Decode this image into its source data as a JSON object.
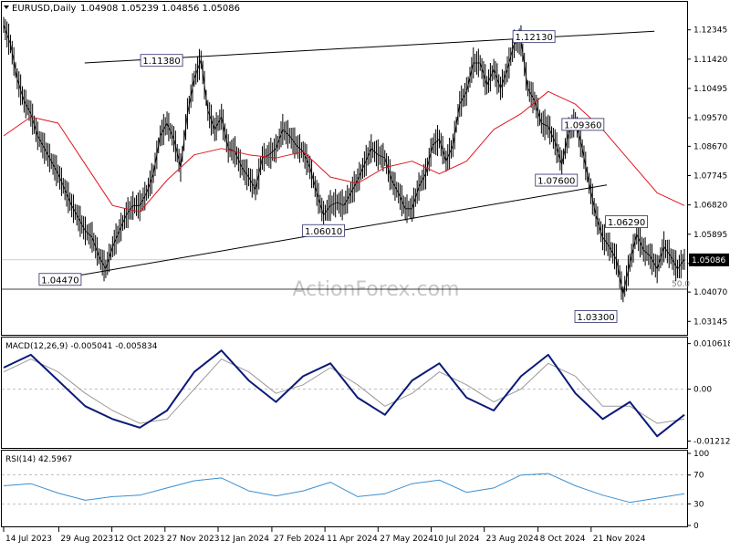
{
  "header": {
    "symbol": "EURUSD,Daily",
    "ohlc": "1.04908 1.05239 1.04856 1.05086"
  },
  "watermark": "ActionForex.com",
  "colors": {
    "price": "#000000",
    "sma": "#e0141e",
    "macd": "#0a1a78",
    "signal": "#9a9a9a",
    "rsi": "#3a8fd0",
    "grid": "#9a9a9a",
    "current_box": "#000000"
  },
  "chart_data": [
    {
      "type": "line",
      "panel": "price",
      "ylim": [
        1.0275,
        1.132
      ],
      "yticks": [
        {
          "value": 1.12345,
          "label": "1.12345"
        },
        {
          "value": 1.1142,
          "label": "1.11420"
        },
        {
          "value": 1.10495,
          "label": "1.10495"
        },
        {
          "value": 1.0957,
          "label": "1.09570"
        },
        {
          "value": 1.0867,
          "label": "1.08670"
        },
        {
          "value": 1.07745,
          "label": "1.07745"
        },
        {
          "value": 1.0682,
          "label": "1.06820"
        },
        {
          "value": 1.05895,
          "label": "1.05895"
        },
        {
          "value": 1.0497,
          "label": "1.04970"
        },
        {
          "value": 1.0407,
          "label": "1.04070"
        },
        {
          "value": 1.03145,
          "label": "1.03145"
        }
      ],
      "xlim": [
        0,
        100
      ],
      "xticks": [
        {
          "x": 0,
          "label": "14 Jul 2023"
        },
        {
          "x": 8.1,
          "label": "29 Aug 2023"
        },
        {
          "x": 15.9,
          "label": "12 Oct 2023"
        },
        {
          "x": 23.7,
          "label": "27 Nov 2023"
        },
        {
          "x": 31.5,
          "label": "12 Jan 2024"
        },
        {
          "x": 39.4,
          "label": "27 Feb 2024"
        },
        {
          "x": 47.2,
          "label": "11 Apr 2024"
        },
        {
          "x": 55.0,
          "label": "27 May 2024"
        },
        {
          "x": 62.8,
          "label": "10 Jul 2024"
        },
        {
          "x": 70.6,
          "label": "23 Aug 2024"
        },
        {
          "x": 78.5,
          "label": "8 Oct 2024"
        },
        {
          "x": 86.3,
          "label": "21 Nov 2024"
        }
      ],
      "current_price": {
        "value": 1.05086,
        "label": "1.05086"
      },
      "level_line": {
        "value": 1.0416,
        "label": "50.0"
      },
      "series": [
        {
          "name": "price",
          "x": [
            0,
            1,
            2,
            3,
            4,
            5,
            6,
            7,
            8,
            9,
            10,
            11,
            12,
            13,
            14,
            15,
            16,
            17,
            18,
            19,
            20,
            21,
            22,
            23,
            24,
            25,
            26,
            27,
            28,
            29,
            30,
            31,
            32,
            33,
            34,
            35,
            36,
            37,
            38,
            39,
            40,
            41,
            42,
            43,
            44,
            45,
            46,
            47,
            48,
            49,
            50,
            51,
            52,
            53,
            54,
            55,
            56,
            57,
            58,
            59,
            60,
            61,
            62,
            63,
            64,
            65,
            66,
            67,
            68,
            69,
            70,
            71,
            72,
            73,
            74,
            75,
            76,
            77,
            78,
            79,
            80,
            81,
            82,
            83,
            84,
            85,
            86,
            87,
            88,
            89,
            90,
            91,
            92,
            93,
            94,
            95,
            96,
            97,
            98,
            99,
            100
          ],
          "y": [
            1.125,
            1.119,
            1.108,
            1.101,
            1.097,
            1.09,
            1.086,
            1.082,
            1.078,
            1.073,
            1.068,
            1.064,
            1.06,
            1.058,
            1.052,
            1.048,
            1.055,
            1.06,
            1.065,
            1.068,
            1.068,
            1.072,
            1.078,
            1.09,
            1.094,
            1.089,
            1.08,
            1.097,
            1.108,
            1.114,
            1.098,
            1.092,
            1.096,
            1.086,
            1.085,
            1.08,
            1.077,
            1.073,
            1.083,
            1.084,
            1.086,
            1.092,
            1.09,
            1.087,
            1.085,
            1.08,
            1.072,
            1.065,
            1.068,
            1.069,
            1.068,
            1.072,
            1.076,
            1.081,
            1.086,
            1.084,
            1.083,
            1.076,
            1.072,
            1.067,
            1.067,
            1.074,
            1.078,
            1.087,
            1.089,
            1.082,
            1.087,
            1.1,
            1.104,
            1.113,
            1.113,
            1.106,
            1.111,
            1.105,
            1.111,
            1.119,
            1.12,
            1.105,
            1.101,
            1.094,
            1.093,
            1.088,
            1.081,
            1.091,
            1.095,
            1.086,
            1.075,
            1.065,
            1.058,
            1.055,
            1.051,
            1.04,
            1.05,
            1.059,
            1.054,
            1.052,
            1.048,
            1.055,
            1.052,
            1.048,
            1.051
          ]
        },
        {
          "name": "sma",
          "x": [
            0,
            4,
            8,
            12,
            16,
            20,
            24,
            28,
            32,
            36,
            40,
            44,
            48,
            52,
            56,
            60,
            64,
            68,
            72,
            76,
            80,
            84,
            88,
            92,
            96,
            100
          ],
          "y": [
            1.09,
            1.096,
            1.094,
            1.081,
            1.068,
            1.066,
            1.076,
            1.084,
            1.086,
            1.084,
            1.083,
            1.085,
            1.077,
            1.075,
            1.08,
            1.082,
            1.078,
            1.082,
            1.092,
            1.097,
            1.104,
            1.1,
            1.092,
            1.082,
            1.072,
            1.068
          ]
        }
      ],
      "trendlines": [
        {
          "x": [
            9.5,
            88.6
          ],
          "y": [
            1.0454,
            1.0745
          ]
        },
        {
          "x": [
            11.9,
            95.6
          ],
          "y": [
            1.113,
            1.123
          ]
        }
      ],
      "annotations": [
        {
          "label": "1.04470",
          "x": 8.3,
          "y": 1.0447
        },
        {
          "label": "1.11380",
          "x": 23.2,
          "y": 1.1138
        },
        {
          "label": "1.06010",
          "x": 47.0,
          "y": 1.0601
        },
        {
          "label": "1.12130",
          "x": 77.9,
          "y": 1.1213
        },
        {
          "label": "1.09360",
          "x": 85.1,
          "y": 1.0936
        },
        {
          "label": "1.07600",
          "x": 81.2,
          "y": 1.076
        },
        {
          "label": "1.06290",
          "x": 91.5,
          "y": 1.0629
        },
        {
          "label": "1.03300",
          "x": 87.0,
          "y": 1.033
        }
      ]
    },
    {
      "type": "line",
      "panel": "macd",
      "title": "MACD(12,26,9) -0.005041 -0.005834",
      "ylim": [
        -0.0135,
        0.0116
      ],
      "yticks": [
        {
          "value": 0.010618,
          "label": "0.010618"
        },
        {
          "value": 0.0,
          "label": "0.00"
        },
        {
          "value": -0.01212,
          "label": "-0.01212"
        }
      ],
      "series": [
        {
          "name": "macd",
          "x": [
            0,
            4,
            8,
            12,
            16,
            20,
            24,
            28,
            32,
            36,
            40,
            44,
            48,
            52,
            56,
            60,
            64,
            68,
            72,
            76,
            80,
            84,
            88,
            92,
            96,
            100
          ],
          "y": [
            0.005,
            0.008,
            0.002,
            -0.004,
            -0.007,
            -0.009,
            -0.005,
            0.004,
            0.009,
            0.002,
            -0.003,
            0.003,
            0.006,
            -0.002,
            -0.006,
            0.002,
            0.006,
            -0.002,
            -0.005,
            0.003,
            0.008,
            -0.001,
            -0.007,
            -0.003,
            -0.011,
            -0.006
          ]
        },
        {
          "name": "signal",
          "x": [
            0,
            4,
            8,
            12,
            16,
            20,
            24,
            28,
            32,
            36,
            40,
            44,
            48,
            52,
            56,
            60,
            64,
            68,
            72,
            76,
            80,
            84,
            88,
            92,
            96,
            100
          ],
          "y": [
            0.004,
            0.007,
            0.004,
            -0.001,
            -0.005,
            -0.008,
            -0.007,
            0.0,
            0.007,
            0.004,
            -0.001,
            0.001,
            0.005,
            0.001,
            -0.004,
            -0.001,
            0.004,
            0.001,
            -0.003,
            0.0,
            0.006,
            0.003,
            -0.004,
            -0.004,
            -0.008,
            -0.007
          ]
        }
      ]
    },
    {
      "type": "line",
      "panel": "rsi",
      "title": "RSI(14) 42.5967",
      "ylim": [
        0,
        100
      ],
      "yticks": [
        {
          "value": 100,
          "label": "100"
        },
        {
          "value": 70,
          "label": "70"
        },
        {
          "value": 30,
          "label": "30"
        },
        {
          "value": 0,
          "label": "0"
        }
      ],
      "series": [
        {
          "name": "rsi",
          "x": [
            0,
            4,
            8,
            12,
            16,
            20,
            24,
            28,
            32,
            36,
            40,
            44,
            48,
            52,
            56,
            60,
            64,
            68,
            72,
            76,
            80,
            84,
            88,
            92,
            96,
            100
          ],
          "y": [
            55,
            58,
            45,
            35,
            40,
            42,
            52,
            62,
            66,
            48,
            41,
            48,
            60,
            40,
            44,
            58,
            63,
            46,
            52,
            70,
            72,
            55,
            42,
            32,
            38,
            44
          ]
        }
      ]
    }
  ]
}
